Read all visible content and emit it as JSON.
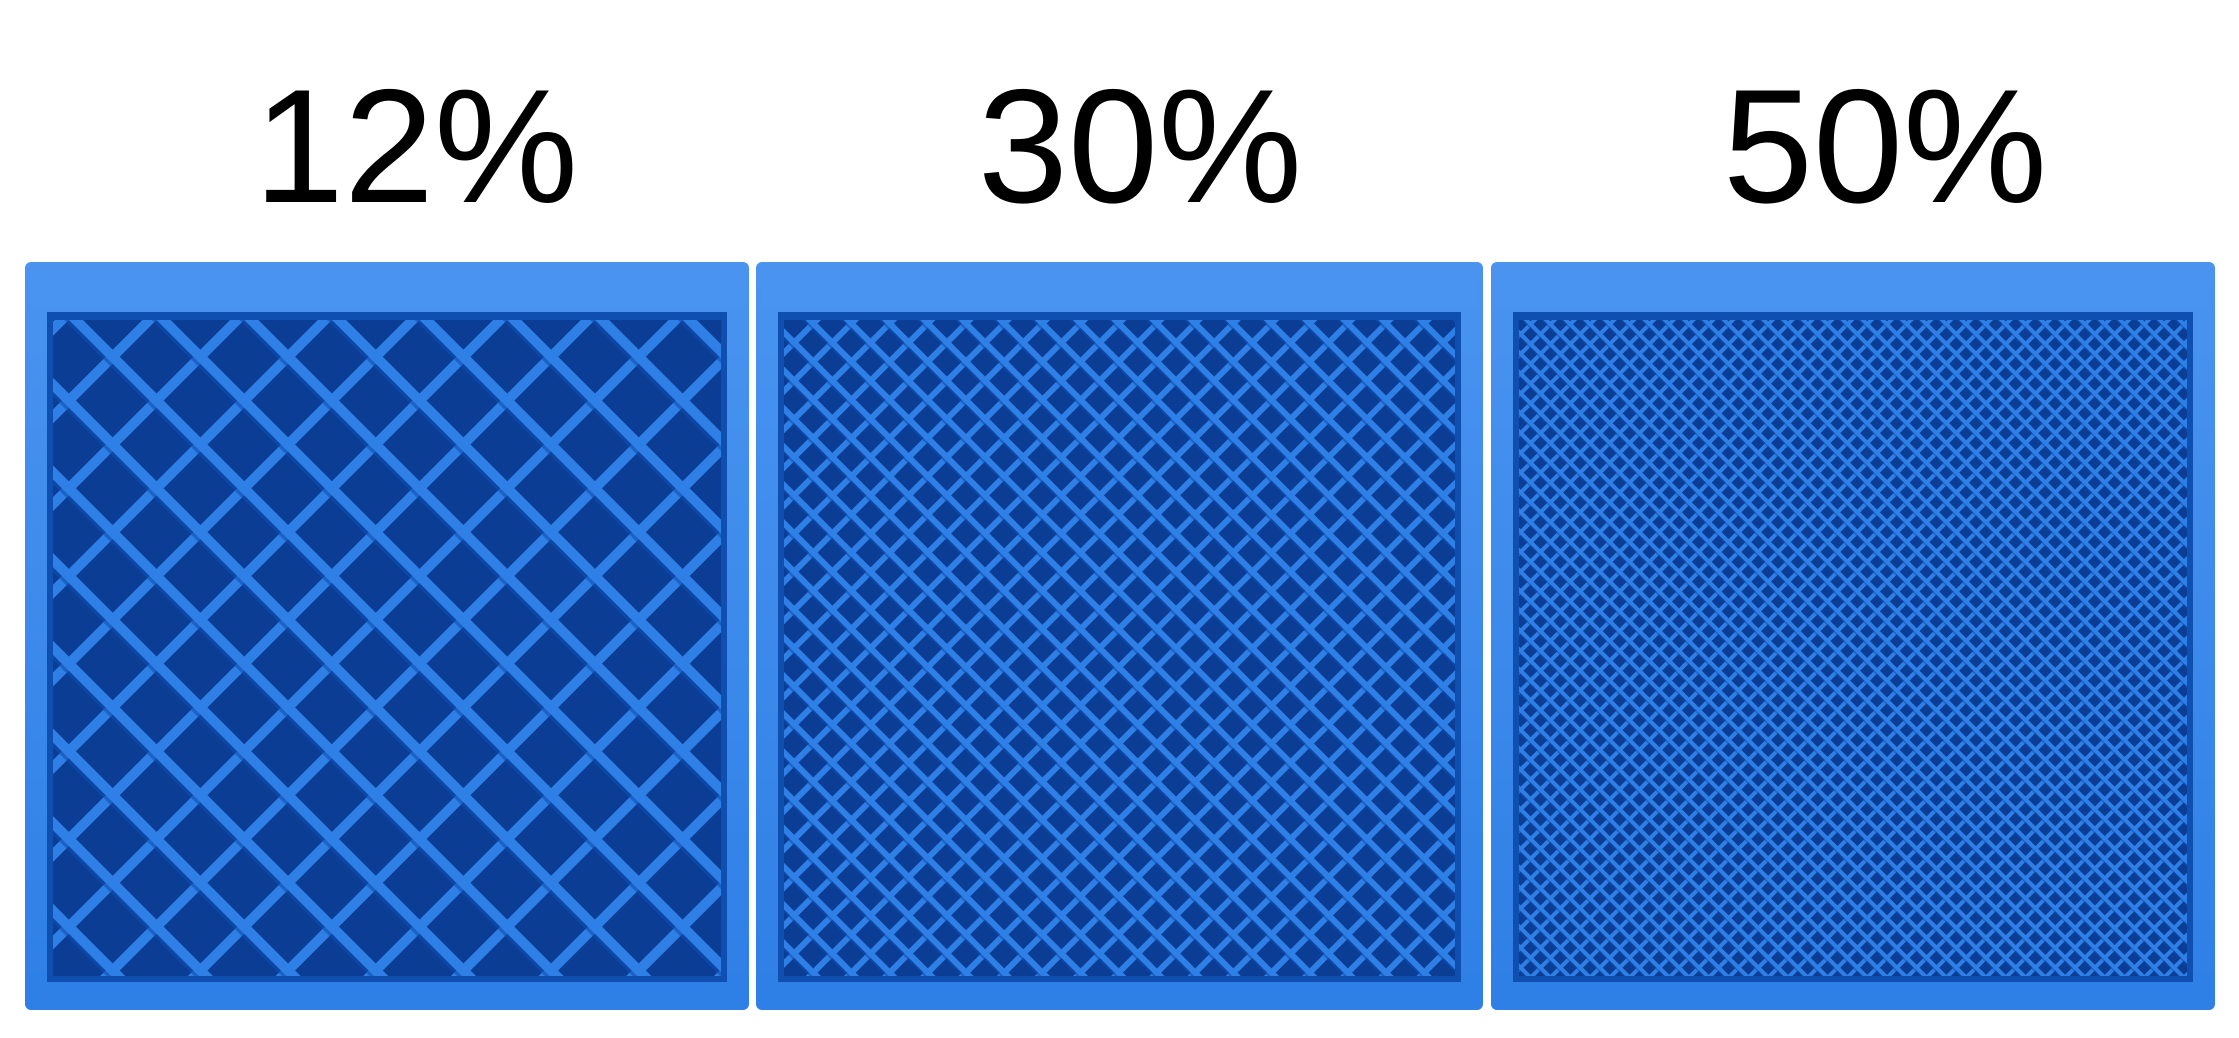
{
  "samples": [
    {
      "label": "12%",
      "density": 0.12
    },
    {
      "label": "30%",
      "density": 0.3
    },
    {
      "label": "50%",
      "density": 0.5
    }
  ],
  "colors": {
    "background": "#ffffff",
    "label_text": "#000000",
    "plastic": "#2e7fe6",
    "plastic_light": "#4a94f0",
    "plastic_dark": "#0f4fb0",
    "gap_shadow": "#0b3d94"
  }
}
